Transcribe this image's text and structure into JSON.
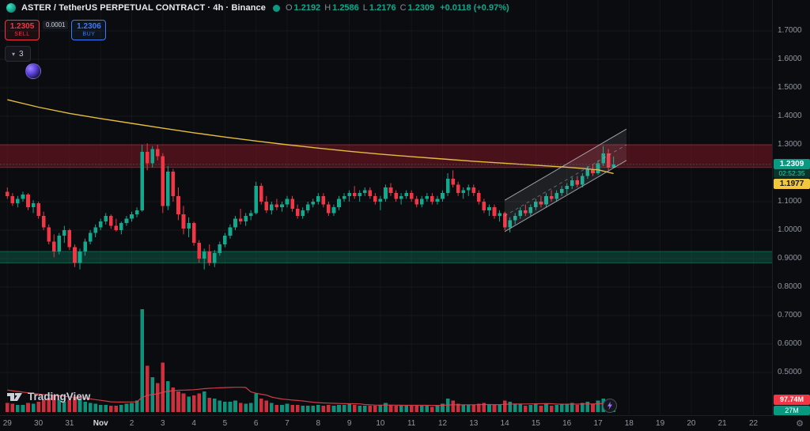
{
  "header": {
    "symbol_title": "ASTER / TetherUS PERPETUAL CONTRACT · 4h · Binance",
    "ohlc": {
      "open_label": "O",
      "open_value": "1.2192",
      "high_label": "H",
      "high_value": "1.2586",
      "low_label": "L",
      "low_value": "1.2176",
      "close_label": "C",
      "close_value": "1.2309",
      "change_value": "+0.0118 (+0.97%)"
    }
  },
  "trade_panel": {
    "sell_price": "1.2305",
    "sell_label": "SELL",
    "spread": "0.0001",
    "buy_price": "1.2306",
    "buy_label": "BUY"
  },
  "widgets": {
    "object_count": "3"
  },
  "watermark": {
    "brand": "TradingView"
  },
  "badges": {
    "last_price": "1.2309",
    "countdown": "02:52:35",
    "ma_value": "1.1977",
    "volume": "97.74M",
    "volume_secondary": "27M"
  },
  "colors": {
    "up": "#12a98e",
    "down": "#f23645",
    "ma_yellow": "#e3bd3e",
    "vol_ma": "#e2404e",
    "accent_teal": "#089981",
    "buy_blue": "#3e7bf6",
    "sell_red": "#f23645",
    "badge_yellow": "#f0c73e",
    "background": "#0b0c0f"
  },
  "chart_data": {
    "type": "candlestick",
    "timeframe": "4h",
    "last_price": 1.2309,
    "ma_label_price": 1.1977,
    "price_axis_ticks": [
      "1.7000",
      "1.6000",
      "1.5000",
      "1.4000",
      "1.3000",
      "1.1000",
      "1.0000",
      "0.9000",
      "0.8000",
      "0.7000",
      "0.6000",
      "0.5000"
    ],
    "time_axis": {
      "labels": [
        "29",
        "30",
        "31",
        "Nov",
        "2",
        "3",
        "4",
        "5",
        "6",
        "7",
        "8",
        "9",
        "10",
        "11",
        "12",
        "13",
        "14",
        "15",
        "16",
        "17",
        "18",
        "19",
        "20",
        "21",
        "22"
      ],
      "major_index": 3
    },
    "candles": [
      [
        1.135,
        1.15,
        1.11,
        1.12,
        9
      ],
      [
        1.12,
        1.13,
        1.085,
        1.095,
        8
      ],
      [
        1.095,
        1.12,
        1.08,
        1.11,
        7
      ],
      [
        1.11,
        1.135,
        1.1,
        1.125,
        7
      ],
      [
        1.125,
        1.13,
        1.07,
        1.08,
        9
      ],
      [
        1.08,
        1.105,
        1.06,
        1.095,
        8
      ],
      [
        1.095,
        1.1,
        1.04,
        1.05,
        10
      ],
      [
        1.05,
        1.065,
        1.0,
        1.01,
        12
      ],
      [
        1.01,
        1.02,
        0.95,
        0.96,
        14
      ],
      [
        0.96,
        0.985,
        0.905,
        0.925,
        16
      ],
      [
        0.925,
        0.99,
        0.915,
        0.98,
        12
      ],
      [
        0.98,
        1.015,
        0.955,
        1.0,
        10
      ],
      [
        1.0,
        1.005,
        0.93,
        0.94,
        12
      ],
      [
        0.94,
        0.95,
        0.87,
        0.885,
        14
      ],
      [
        0.885,
        0.935,
        0.862,
        0.925,
        13
      ],
      [
        0.925,
        0.97,
        0.91,
        0.96,
        10
      ],
      [
        0.96,
        1.0,
        0.95,
        0.99,
        9
      ],
      [
        0.99,
        1.02,
        0.975,
        1.01,
        8
      ],
      [
        1.01,
        1.04,
        1.0,
        1.03,
        7
      ],
      [
        1.03,
        1.06,
        1.02,
        1.05,
        7
      ],
      [
        1.05,
        1.055,
        1.005,
        1.015,
        6
      ],
      [
        1.015,
        1.04,
        0.995,
        1.0,
        6
      ],
      [
        1.0,
        1.03,
        0.985,
        1.025,
        7
      ],
      [
        1.025,
        1.05,
        1.015,
        1.04,
        8
      ],
      [
        1.04,
        1.065,
        1.03,
        1.055,
        9
      ],
      [
        1.055,
        1.08,
        1.045,
        1.07,
        11
      ],
      [
        1.07,
        1.3,
        1.065,
        1.275,
        100
      ],
      [
        1.275,
        1.305,
        1.21,
        1.235,
        45
      ],
      [
        1.235,
        1.295,
        1.22,
        1.285,
        34
      ],
      [
        1.285,
        1.3,
        1.245,
        1.26,
        28
      ],
      [
        1.26,
        1.27,
        1.06,
        1.085,
        48
      ],
      [
        1.085,
        1.225,
        1.07,
        1.205,
        30
      ],
      [
        1.205,
        1.215,
        1.1,
        1.12,
        24
      ],
      [
        1.12,
        1.15,
        1.035,
        1.055,
        20
      ],
      [
        1.055,
        1.085,
        0.985,
        1.005,
        18
      ],
      [
        1.005,
        1.045,
        0.975,
        1.025,
        15
      ],
      [
        1.025,
        1.03,
        0.945,
        0.955,
        16
      ],
      [
        0.955,
        0.965,
        0.885,
        0.9,
        18
      ],
      [
        0.9,
        0.935,
        0.862,
        0.925,
        20
      ],
      [
        0.925,
        0.95,
        0.875,
        0.885,
        14
      ],
      [
        0.885,
        0.93,
        0.87,
        0.92,
        13
      ],
      [
        0.92,
        0.96,
        0.91,
        0.95,
        11
      ],
      [
        0.95,
        0.99,
        0.94,
        0.98,
        10
      ],
      [
        0.98,
        1.02,
        0.97,
        1.01,
        10
      ],
      [
        1.01,
        1.05,
        1.0,
        1.04,
        11
      ],
      [
        1.04,
        1.075,
        1.02,
        1.03,
        9
      ],
      [
        1.03,
        1.06,
        1.015,
        1.05,
        8
      ],
      [
        1.05,
        1.07,
        1.035,
        1.06,
        9
      ],
      [
        1.06,
        1.17,
        1.055,
        1.155,
        18
      ],
      [
        1.155,
        1.165,
        1.09,
        1.1,
        13
      ],
      [
        1.1,
        1.12,
        1.06,
        1.07,
        11
      ],
      [
        1.07,
        1.1,
        1.055,
        1.09,
        9
      ],
      [
        1.09,
        1.11,
        1.07,
        1.08,
        7
      ],
      [
        1.08,
        1.1,
        1.065,
        1.09,
        7
      ],
      [
        1.09,
        1.12,
        1.08,
        1.11,
        8
      ],
      [
        1.11,
        1.12,
        1.065,
        1.075,
        7
      ],
      [
        1.075,
        1.09,
        1.04,
        1.05,
        7
      ],
      [
        1.05,
        1.08,
        1.04,
        1.07,
        6
      ],
      [
        1.07,
        1.1,
        1.06,
        1.09,
        6
      ],
      [
        1.09,
        1.11,
        1.08,
        1.1,
        6
      ],
      [
        1.1,
        1.13,
        1.09,
        1.12,
        7
      ],
      [
        1.12,
        1.13,
        1.08,
        1.09,
        6
      ],
      [
        1.09,
        1.1,
        1.05,
        1.06,
        7
      ],
      [
        1.06,
        1.09,
        1.05,
        1.08,
        6
      ],
      [
        1.08,
        1.12,
        1.07,
        1.11,
        7
      ],
      [
        1.11,
        1.13,
        1.1,
        1.12,
        7
      ],
      [
        1.12,
        1.14,
        1.1,
        1.13,
        8
      ],
      [
        1.13,
        1.155,
        1.11,
        1.12,
        7
      ],
      [
        1.12,
        1.14,
        1.1,
        1.13,
        6
      ],
      [
        1.13,
        1.15,
        1.12,
        1.14,
        6
      ],
      [
        1.14,
        1.15,
        1.11,
        1.12,
        6
      ],
      [
        1.12,
        1.13,
        1.09,
        1.1,
        6
      ],
      [
        1.1,
        1.12,
        1.07,
        1.11,
        7
      ],
      [
        1.11,
        1.16,
        1.1,
        1.15,
        9
      ],
      [
        1.15,
        1.165,
        1.12,
        1.13,
        7
      ],
      [
        1.13,
        1.14,
        1.1,
        1.11,
        6
      ],
      [
        1.11,
        1.13,
        1.09,
        1.12,
        6
      ],
      [
        1.12,
        1.14,
        1.11,
        1.13,
        6
      ],
      [
        1.13,
        1.14,
        1.1,
        1.11,
        6
      ],
      [
        1.11,
        1.12,
        1.08,
        1.09,
        6
      ],
      [
        1.09,
        1.12,
        1.08,
        1.11,
        6
      ],
      [
        1.11,
        1.13,
        1.1,
        1.12,
        6
      ],
      [
        1.12,
        1.13,
        1.09,
        1.1,
        5
      ],
      [
        1.1,
        1.12,
        1.09,
        1.11,
        6
      ],
      [
        1.11,
        1.14,
        1.1,
        1.13,
        8
      ],
      [
        1.13,
        1.2,
        1.12,
        1.18,
        13
      ],
      [
        1.18,
        1.21,
        1.15,
        1.16,
        11
      ],
      [
        1.16,
        1.17,
        1.12,
        1.13,
        8
      ],
      [
        1.13,
        1.15,
        1.11,
        1.14,
        7
      ],
      [
        1.14,
        1.16,
        1.12,
        1.15,
        7
      ],
      [
        1.15,
        1.16,
        1.12,
        1.13,
        7
      ],
      [
        1.13,
        1.14,
        1.09,
        1.1,
        8
      ],
      [
        1.1,
        1.11,
        1.06,
        1.07,
        9
      ],
      [
        1.07,
        1.09,
        1.05,
        1.08,
        7
      ],
      [
        1.08,
        1.09,
        1.04,
        1.05,
        7
      ],
      [
        1.05,
        1.07,
        1.03,
        1.06,
        7
      ],
      [
        1.06,
        1.065,
        1.0,
        1.01,
        11
      ],
      [
        1.01,
        1.045,
        0.992,
        1.035,
        10
      ],
      [
        1.035,
        1.06,
        1.02,
        1.05,
        8
      ],
      [
        1.05,
        1.08,
        1.04,
        1.07,
        8
      ],
      [
        1.07,
        1.09,
        1.05,
        1.06,
        6
      ],
      [
        1.06,
        1.09,
        1.05,
        1.08,
        7
      ],
      [
        1.08,
        1.11,
        1.07,
        1.1,
        8
      ],
      [
        1.1,
        1.12,
        1.08,
        1.09,
        6
      ],
      [
        1.09,
        1.13,
        1.08,
        1.12,
        8
      ],
      [
        1.12,
        1.14,
        1.1,
        1.11,
        6
      ],
      [
        1.11,
        1.14,
        1.1,
        1.13,
        7
      ],
      [
        1.13,
        1.155,
        1.12,
        1.145,
        8
      ],
      [
        1.145,
        1.165,
        1.125,
        1.155,
        8
      ],
      [
        1.155,
        1.185,
        1.145,
        1.175,
        9
      ],
      [
        1.175,
        1.19,
        1.15,
        1.16,
        7
      ],
      [
        1.16,
        1.2,
        1.15,
        1.19,
        9
      ],
      [
        1.19,
        1.225,
        1.18,
        1.215,
        10
      ],
      [
        1.215,
        1.23,
        1.19,
        1.2,
        8
      ],
      [
        1.2,
        1.245,
        1.195,
        1.235,
        11
      ],
      [
        1.235,
        1.295,
        1.225,
        1.27,
        13
      ],
      [
        1.27,
        1.285,
        1.21,
        1.22,
        10
      ],
      [
        1.2192,
        1.2586,
        1.2176,
        1.2309,
        9.77
      ]
    ],
    "yellow_ma": [
      [
        0,
        1.458
      ],
      [
        6,
        1.432
      ],
      [
        12,
        1.41
      ],
      [
        18,
        1.392
      ],
      [
        24,
        1.375
      ],
      [
        30,
        1.358
      ],
      [
        36,
        1.342
      ],
      [
        42,
        1.327
      ],
      [
        48,
        1.313
      ],
      [
        54,
        1.3
      ],
      [
        60,
        1.288
      ],
      [
        66,
        1.277
      ],
      [
        72,
        1.267
      ],
      [
        78,
        1.258
      ],
      [
        84,
        1.25
      ],
      [
        90,
        1.242
      ],
      [
        96,
        1.235
      ],
      [
        102,
        1.228
      ],
      [
        108,
        1.221
      ],
      [
        114,
        1.212
      ],
      [
        117,
        1.199
      ]
    ],
    "volume_ma_seed": 22,
    "zones": [
      {
        "name": "resistance",
        "top": 1.3,
        "bottom": 1.22,
        "fill": "rgba(183,28,45,0.36)",
        "border": "rgba(242,54,69,0.45)"
      },
      {
        "name": "support",
        "top": 0.925,
        "bottom": 0.885,
        "fill": "rgba(10,145,112,0.30)",
        "border": "rgba(16,160,120,0.5)"
      }
    ],
    "channel": {
      "i1": 96,
      "i2": 119.5,
      "p1": 0.995,
      "p2": 1.245,
      "width": 0.11,
      "fill": "rgba(178,181,190,0.12)",
      "line": "rgba(190,194,204,0.8)"
    }
  }
}
